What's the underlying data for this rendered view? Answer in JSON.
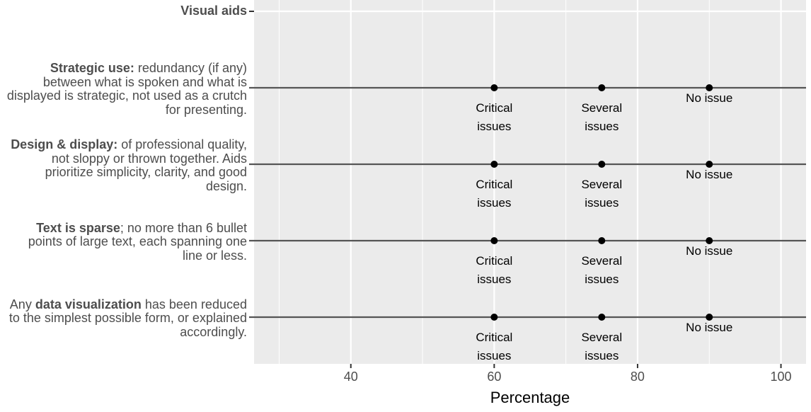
{
  "chart_data": {
    "type": "scatter",
    "title": "",
    "xlabel": "Percentage",
    "ylabel": "",
    "xlim": [
      26.5,
      103.5
    ],
    "x_ticks": [
      40,
      60,
      80,
      100
    ],
    "grid": true,
    "header_row": "Visual aids",
    "rows": [
      {
        "bold": "Strategic use:",
        "text": " redundancy (if any) between what is spoken and what is displayed is strategic, not used as a crutch for presenting.",
        "points": [
          {
            "x": 60,
            "label": "Critical issues"
          },
          {
            "x": 75,
            "label": "Several issues"
          },
          {
            "x": 90,
            "label": "No issue"
          }
        ]
      },
      {
        "bold": "Design & display:",
        "text": " of professional quality, not sloppy or thrown together. Aids prioritize simplicity, clarity, and good design.",
        "points": [
          {
            "x": 60,
            "label": "Critical issues"
          },
          {
            "x": 75,
            "label": "Several issues"
          },
          {
            "x": 90,
            "label": "No issue"
          }
        ]
      },
      {
        "bold": "Text is sparse",
        "text": "; no more than 6 bullet points of large text, each spanning one line or less.",
        "points": [
          {
            "x": 60,
            "label": "Critical issues"
          },
          {
            "x": 75,
            "label": "Several issues"
          },
          {
            "x": 90,
            "label": "No issue"
          }
        ]
      },
      {
        "prefix": "Any ",
        "bold": "data visualization",
        "text": " has been reduced to the simplest possible form, or explained accordingly.",
        "points": [
          {
            "x": 60,
            "label": "Critical issues"
          },
          {
            "x": 75,
            "label": "Several issues"
          },
          {
            "x": 90,
            "label": "No issue"
          }
        ]
      }
    ]
  }
}
